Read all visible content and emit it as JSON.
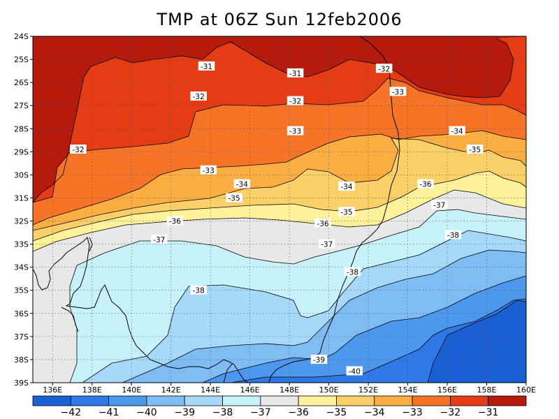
{
  "title": "TMP at 06Z Sun 12feb2006",
  "chart_data": {
    "type": "heatmap",
    "variable": "TMP",
    "lat_ticks": [
      "24S",
      "25S",
      "26S",
      "27S",
      "28S",
      "29S",
      "30S",
      "31S",
      "32S",
      "33S",
      "34S",
      "35S",
      "36S",
      "37S",
      "38S",
      "39S"
    ],
    "lon_ticks": [
      "136E",
      "138E",
      "140E",
      "142E",
      "144E",
      "146E",
      "148E",
      "150E",
      "152E",
      "154E",
      "156E",
      "158E",
      "160E"
    ],
    "lat_range": [
      -39,
      -24
    ],
    "lon_range": [
      135,
      160
    ],
    "grid": true,
    "levels": [
      {
        "value": -42,
        "color": "#1a5fd4"
      },
      {
        "value": -41,
        "color": "#2e79e6"
      },
      {
        "value": -40,
        "color": "#4d98ef"
      },
      {
        "value": -39,
        "color": "#7fbcf5"
      },
      {
        "value": -38,
        "color": "#a6d8fa"
      },
      {
        "value": -37,
        "color": "#c7f2fc"
      },
      {
        "value": -36,
        "color": "#e8e8e8"
      },
      {
        "value": -35,
        "color": "#fff29a"
      },
      {
        "value": -34,
        "color": "#fcd068"
      },
      {
        "value": -33,
        "color": "#fbae42"
      },
      {
        "value": -32,
        "color": "#f57427"
      },
      {
        "value": -31,
        "color": "#e43c14"
      },
      {
        "value": null,
        "color": "#b51b0c"
      }
    ],
    "colorbar_labels": [
      "−42",
      "−41",
      "−40",
      "−39",
      "−38",
      "−37",
      "−36",
      "−35",
      "−34",
      "−33",
      "−32",
      "−31"
    ],
    "contour_labels": [
      {
        "text": "-31",
        "lon": 143.8,
        "lat": -25.3
      },
      {
        "text": "-31",
        "lon": 148.3,
        "lat": -25.6
      },
      {
        "text": "-32",
        "lon": 152.8,
        "lat": -25.4
      },
      {
        "text": "-32",
        "lon": 143.4,
        "lat": -26.6
      },
      {
        "text": "-32",
        "lon": 148.3,
        "lat": -26.8
      },
      {
        "text": "-33",
        "lon": 153.5,
        "lat": -26.4
      },
      {
        "text": "-32",
        "lon": 137.3,
        "lat": -28.9
      },
      {
        "text": "-33",
        "lon": 148.3,
        "lat": -28.1
      },
      {
        "text": "-34",
        "lon": 156.5,
        "lat": -28.1
      },
      {
        "text": "-35",
        "lon": 157.4,
        "lat": -28.9
      },
      {
        "text": "-33",
        "lon": 143.9,
        "lat": -29.8
      },
      {
        "text": "-34",
        "lon": 145.6,
        "lat": -30.4
      },
      {
        "text": "-34",
        "lon": 150.9,
        "lat": -30.5
      },
      {
        "text": "-36",
        "lon": 154.9,
        "lat": -30.4
      },
      {
        "text": "-35",
        "lon": 145.2,
        "lat": -31.0
      },
      {
        "text": "-37",
        "lon": 155.6,
        "lat": -31.3
      },
      {
        "text": "-35",
        "lon": 150.9,
        "lat": -31.6
      },
      {
        "text": "-36",
        "lon": 142.2,
        "lat": -32.0
      },
      {
        "text": "-36",
        "lon": 149.7,
        "lat": -32.1
      },
      {
        "text": "-38",
        "lon": 156.3,
        "lat": -32.6
      },
      {
        "text": "-37",
        "lon": 141.4,
        "lat": -32.8
      },
      {
        "text": "-37",
        "lon": 149.9,
        "lat": -33.0
      },
      {
        "text": "-38",
        "lon": 151.2,
        "lat": -34.2
      },
      {
        "text": "-38",
        "lon": 143.4,
        "lat": -35.0
      },
      {
        "text": "-39",
        "lon": 149.5,
        "lat": -38.0
      },
      {
        "text": "-40",
        "lon": 151.3,
        "lat": -38.5
      }
    ]
  }
}
